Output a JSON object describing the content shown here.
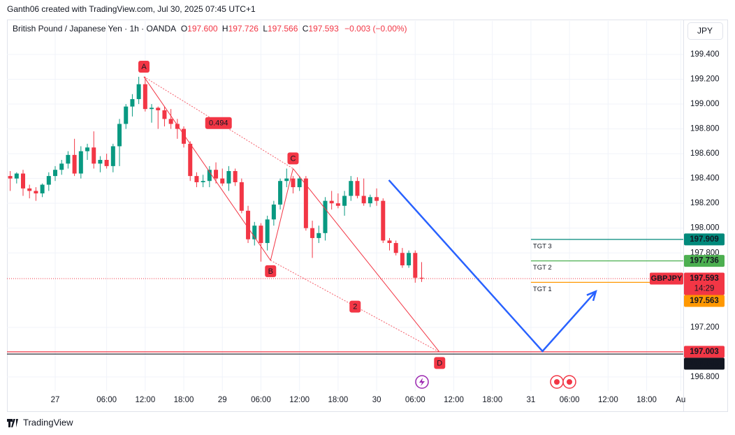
{
  "header": {
    "attribution": "Ganth06 created with TradingView.com, Jul 30, 2025 07:45 UTC+1",
    "symbol_line": "British Pound / Japanese Yen · 1h · OANDA",
    "ohlc": [
      {
        "label": "O",
        "value": "197.600"
      },
      {
        "label": "H",
        "value": "197.726"
      },
      {
        "label": "L",
        "value": "197.566"
      },
      {
        "label": "C",
        "value": "197.593"
      }
    ],
    "change": "−0.003 (−0.00%)",
    "currency": "JPY"
  },
  "footer": {
    "brand": "TradingView"
  },
  "chart_data": {
    "type": "candlestick",
    "x": [
      0,
      1,
      2,
      3,
      4,
      5,
      6,
      7,
      8,
      9,
      10,
      11,
      12,
      13,
      14,
      15,
      16,
      17,
      18,
      19,
      20,
      21,
      22,
      23,
      24,
      25,
      26,
      27,
      28,
      29,
      30,
      31,
      32,
      33,
      34,
      35,
      36,
      37,
      38,
      39,
      40,
      41,
      42,
      43,
      44,
      45,
      46,
      47,
      48,
      49,
      50,
      51,
      52,
      53,
      54,
      55,
      56,
      57,
      58,
      59,
      60,
      61,
      62,
      63,
      64
    ],
    "open": [
      198.42,
      198.4,
      198.44,
      198.32,
      198.3,
      198.28,
      198.35,
      198.42,
      198.47,
      198.52,
      198.59,
      198.44,
      198.62,
      198.65,
      198.52,
      198.55,
      198.5,
      198.66,
      198.84,
      198.98,
      199.04,
      199.16,
      198.96,
      198.97,
      198.95,
      198.88,
      198.84,
      198.8,
      198.68,
      198.42,
      198.37,
      198.38,
      198.47,
      198.4,
      198.36,
      198.46,
      198.37,
      198.14,
      197.91,
      198.02,
      197.88,
      198.07,
      198.19,
      198.38,
      198.4,
      198.33,
      198.4,
      198.0,
      197.92,
      197.96,
      198.22,
      198.2,
      198.18,
      198.26,
      198.38,
      198.26,
      198.2,
      198.25,
      198.22,
      197.9,
      197.88,
      197.8,
      197.7,
      197.8,
      197.6
    ],
    "high": [
      198.46,
      198.45,
      198.47,
      198.35,
      198.33,
      198.36,
      198.45,
      198.5,
      198.55,
      198.62,
      198.72,
      198.66,
      198.68,
      198.78,
      198.58,
      198.6,
      198.68,
      198.88,
      199.0,
      199.08,
      199.22,
      199.22,
      199.0,
      198.98,
      198.98,
      198.96,
      198.88,
      198.82,
      198.7,
      198.45,
      198.43,
      198.5,
      198.53,
      198.48,
      198.5,
      198.48,
      198.4,
      198.18,
      198.05,
      198.04,
      198.1,
      198.22,
      198.4,
      198.48,
      198.42,
      198.42,
      198.42,
      198.06,
      198.02,
      198.25,
      198.3,
      198.28,
      198.3,
      198.42,
      198.41,
      198.4,
      198.27,
      198.32,
      198.24,
      197.92,
      197.9,
      197.84,
      197.82,
      197.82,
      197.726
    ],
    "low": [
      198.3,
      198.36,
      198.26,
      198.24,
      198.22,
      198.25,
      198.3,
      198.38,
      198.43,
      198.48,
      198.42,
      198.4,
      198.55,
      198.48,
      198.45,
      198.48,
      198.45,
      198.5,
      198.8,
      198.9,
      199.0,
      198.94,
      198.85,
      198.8,
      198.82,
      198.8,
      198.72,
      198.65,
      198.38,
      198.33,
      198.33,
      198.33,
      198.36,
      198.34,
      198.3,
      198.34,
      198.12,
      197.88,
      197.86,
      197.73,
      197.82,
      198.02,
      198.15,
      198.33,
      198.28,
      198.3,
      197.98,
      197.76,
      197.88,
      197.9,
      198.15,
      198.16,
      198.1,
      198.22,
      198.24,
      198.18,
      198.17,
      198.18,
      197.88,
      197.82,
      197.78,
      197.68,
      197.68,
      197.56,
      197.566
    ],
    "close": [
      198.4,
      198.44,
      198.32,
      198.3,
      198.28,
      198.35,
      198.42,
      198.47,
      198.52,
      198.59,
      198.44,
      198.62,
      198.65,
      198.52,
      198.55,
      198.5,
      198.66,
      198.84,
      198.98,
      199.04,
      199.16,
      198.96,
      198.97,
      198.95,
      198.88,
      198.84,
      198.8,
      198.68,
      198.42,
      198.37,
      198.38,
      198.47,
      198.4,
      198.36,
      198.46,
      198.37,
      198.14,
      197.91,
      198.02,
      197.88,
      198.07,
      198.19,
      198.38,
      198.4,
      198.33,
      198.4,
      198.0,
      197.92,
      197.96,
      198.22,
      198.2,
      198.18,
      198.26,
      198.38,
      198.26,
      198.2,
      198.25,
      198.22,
      197.9,
      197.88,
      197.8,
      197.7,
      197.8,
      197.6,
      197.593
    ],
    "up_color": "#089981",
    "down_color": "#f23645",
    "xlim": [
      -0.5,
      104.7
    ],
    "ylim": [
      196.687,
      199.67
    ],
    "xticks": [
      {
        "value": 7,
        "label": "27"
      },
      {
        "value": 15,
        "label": "06:00"
      },
      {
        "value": 21,
        "label": "12:00"
      },
      {
        "value": 27,
        "label": "18:00"
      },
      {
        "value": 33,
        "label": "29"
      },
      {
        "value": 39,
        "label": "06:00"
      },
      {
        "value": 45,
        "label": "12:00"
      },
      {
        "value": 51,
        "label": "18:00"
      },
      {
        "value": 57,
        "label": "30"
      },
      {
        "value": 63,
        "label": "06:00"
      },
      {
        "value": 69,
        "label": "12:00"
      },
      {
        "value": 75,
        "label": "18:00"
      },
      {
        "value": 81,
        "label": "31"
      },
      {
        "value": 87,
        "label": "06:00"
      },
      {
        "value": 93,
        "label": "12:00"
      },
      {
        "value": 99,
        "label": "18:00"
      },
      {
        "value": 104.3,
        "label": "Au"
      }
    ],
    "yticks": [
      {
        "value": 199.4,
        "label": "199.400"
      },
      {
        "value": 199.2,
        "label": "199.200"
      },
      {
        "value": 199,
        "label": "199.000"
      },
      {
        "value": 198.8,
        "label": "198.800"
      },
      {
        "value": 198.6,
        "label": "198.600"
      },
      {
        "value": 198.4,
        "label": "198.400"
      },
      {
        "value": 198.2,
        "label": "198.200"
      },
      {
        "value": 198,
        "label": "198.000"
      },
      {
        "value": 197.8,
        "label": "197.800"
      },
      {
        "value": 197.2,
        "label": "197.200"
      },
      {
        "value": 196.8,
        "label": "196.800"
      }
    ],
    "grid": true,
    "last_price": {
      "symbol": "GBPJPY",
      "value": 197.593,
      "countdown": "14:29",
      "color": "#f23645"
    },
    "targets": [
      {
        "name": "TGT 3",
        "value": 197.909,
        "color": "#00897b",
        "start": 81
      },
      {
        "name": "TGT 2",
        "value": 197.736,
        "color": "#4caf50",
        "start": 81
      },
      {
        "name": "TGT 1",
        "value": 197.563,
        "color": "#ff9800",
        "start": 81
      }
    ],
    "levels": [
      {
        "value": 197.003,
        "color": "#f23645"
      },
      {
        "value": 196.985,
        "color": "#131722"
      }
    ],
    "pattern": {
      "color": "#f23645",
      "points": [
        {
          "label": "A",
          "x": 20.8,
          "y": 199.22
        },
        {
          "label": "B",
          "x": 40.5,
          "y": 197.74
        },
        {
          "label": "C",
          "x": 44,
          "y": 198.48
        },
        {
          "label": "D",
          "x": 66.8,
          "y": 197.0
        }
      ],
      "ratios": [
        "0.494",
        "2"
      ]
    },
    "projection": {
      "color": "#2962ff",
      "x": [
        58.9,
        82.8,
        91.1
      ],
      "y": [
        198.387,
        197.008,
        197.49
      ]
    }
  }
}
